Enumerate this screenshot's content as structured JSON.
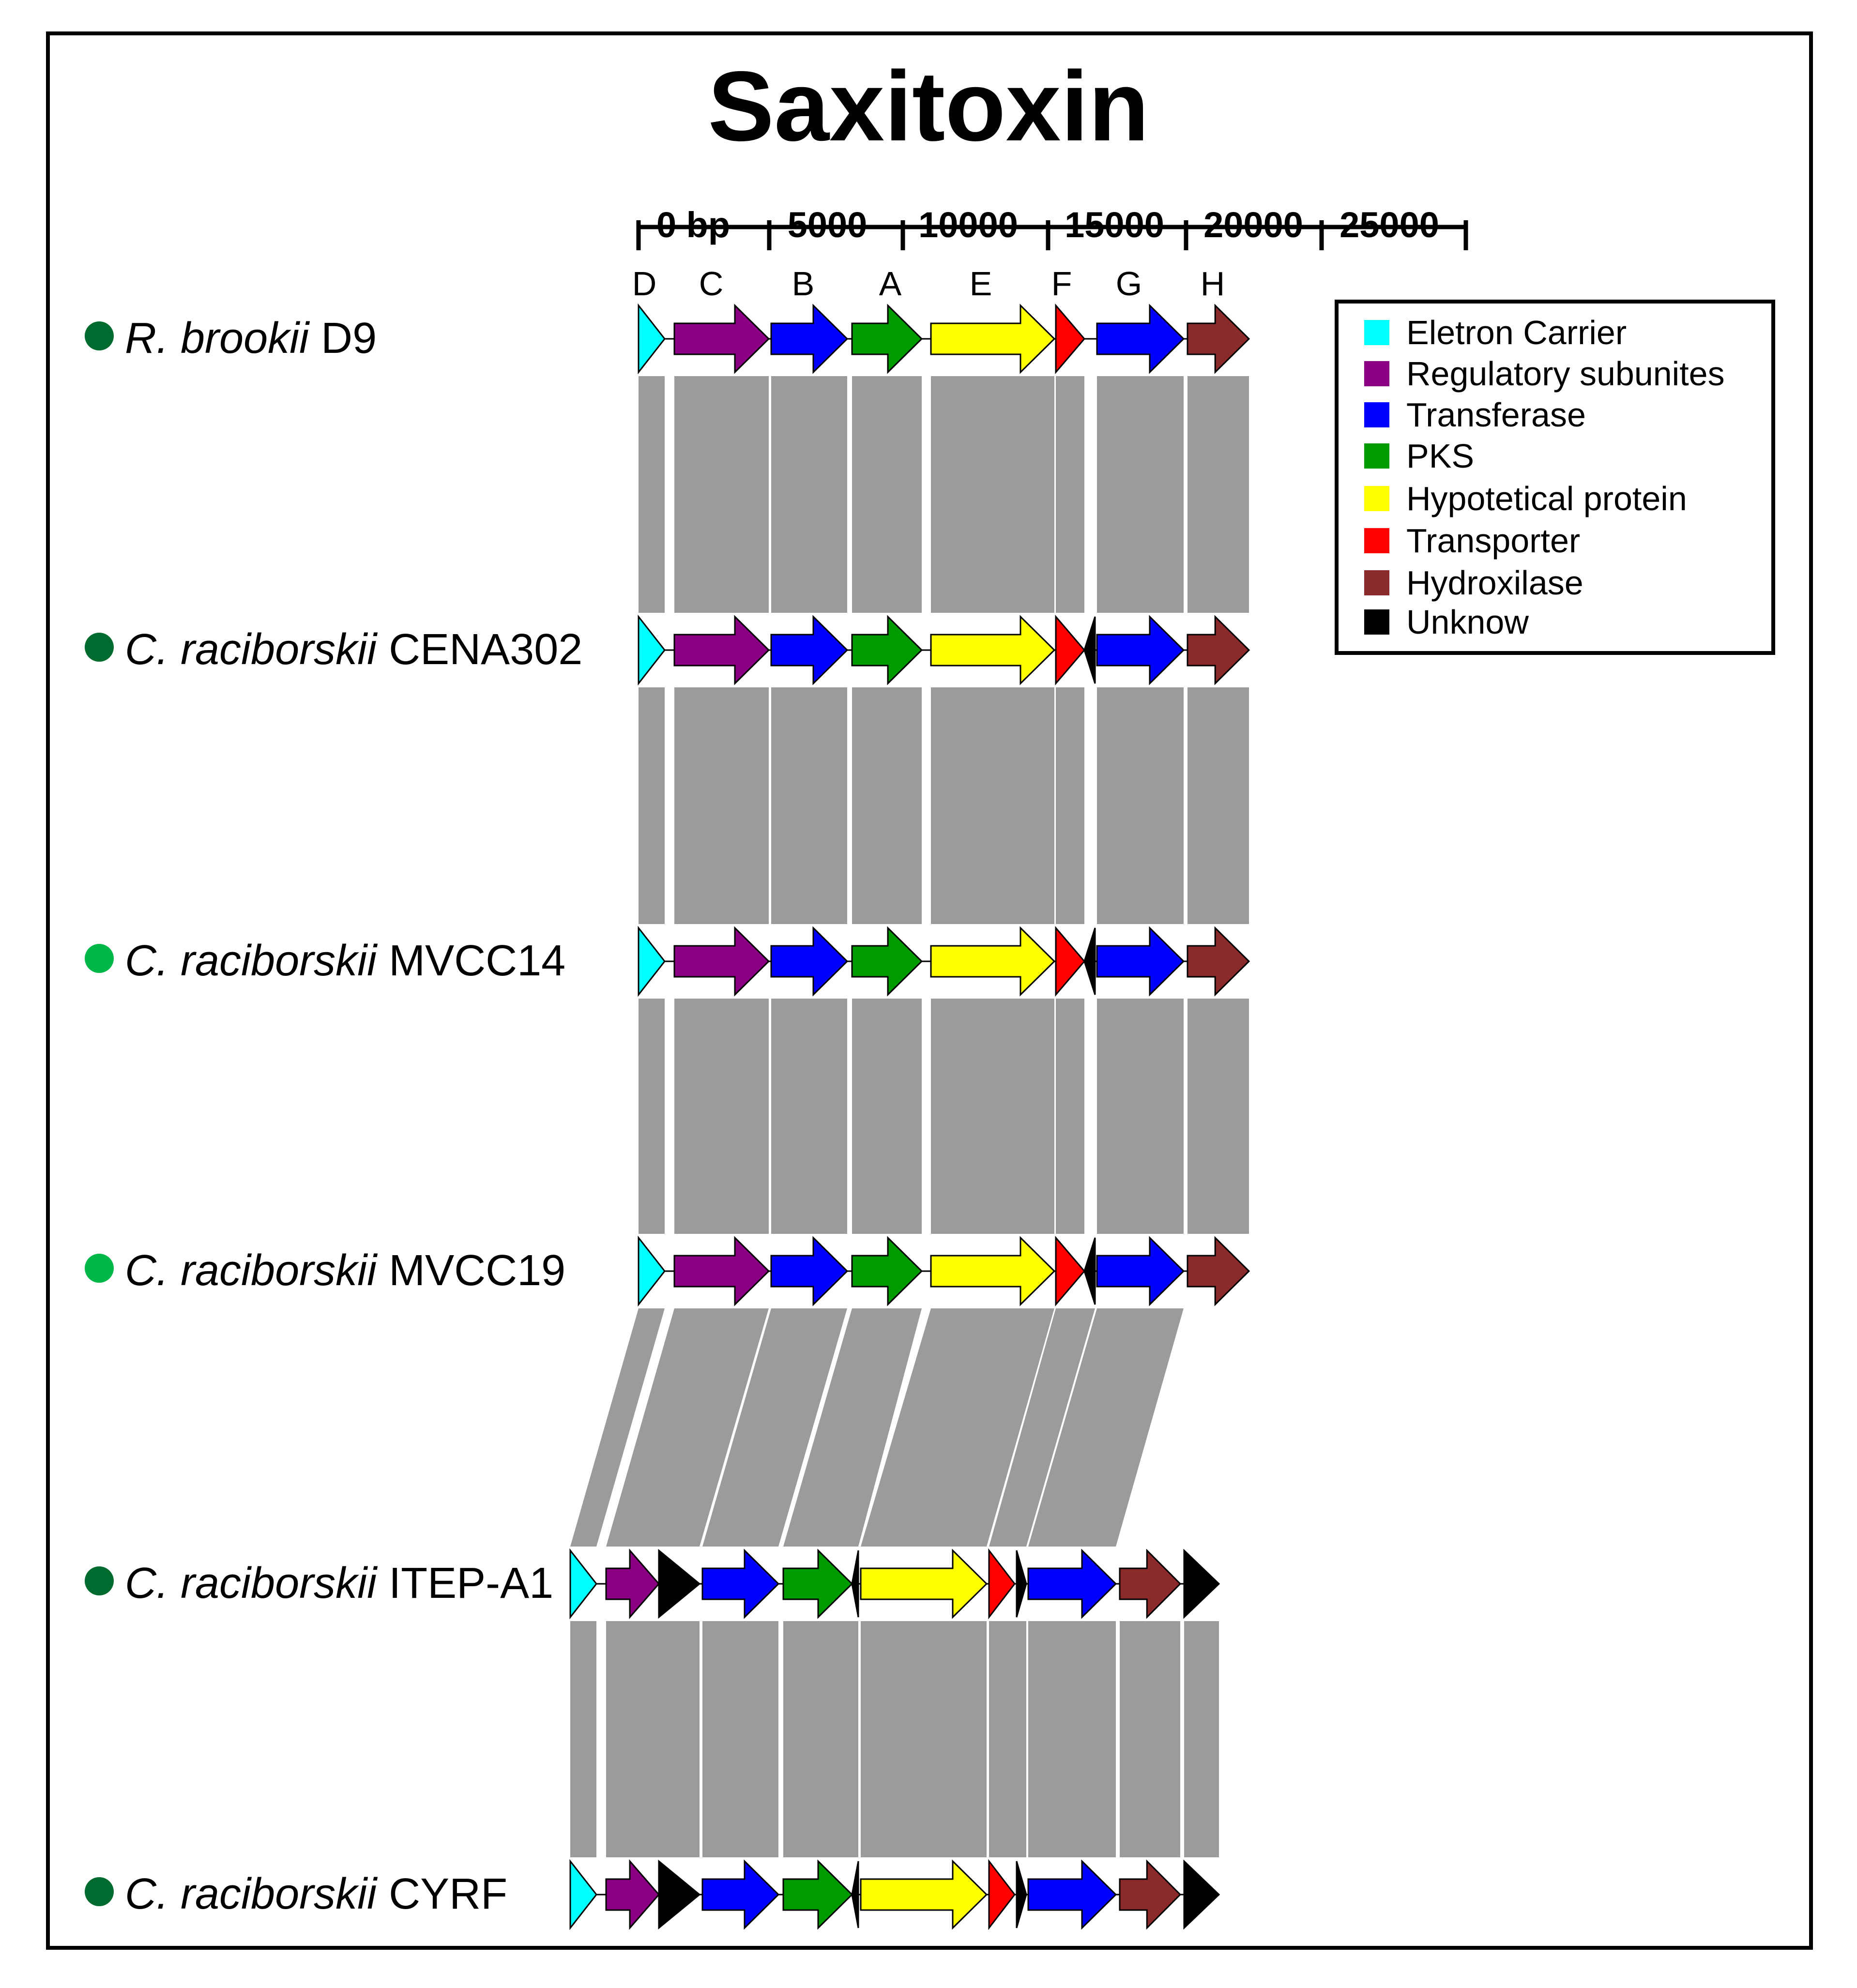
{
  "title": "Saxitoxin",
  "scale": {
    "ticks": [
      {
        "value": 0,
        "label": "0 bp"
      },
      {
        "value": 5000,
        "label": "5000"
      },
      {
        "value": 10000,
        "label": "10000"
      },
      {
        "value": 15000,
        "label": "15000"
      },
      {
        "value": 20000,
        "label": "20000"
      },
      {
        "value": 25000,
        "label": "25000"
      }
    ]
  },
  "gene_letters": [
    "D",
    "C",
    "B",
    "A",
    "E",
    "F",
    "G",
    "H"
  ],
  "categories": [
    {
      "key": "electron",
      "label": "Eletron Carrier",
      "color": "#00ffff"
    },
    {
      "key": "regulatory",
      "label": "Regulatory subunites",
      "color": "#8b0083"
    },
    {
      "key": "transferase",
      "label": "Transferase",
      "color": "#0000ff"
    },
    {
      "key": "pks",
      "label": "PKS",
      "color": "#009b00"
    },
    {
      "key": "hypothetical",
      "label": "Hypotetical protein",
      "color": "#ffff00"
    },
    {
      "key": "transporter",
      "label": "Transporter",
      "color": "#ff0000"
    },
    {
      "key": "hydroxilase",
      "label": "Hydroxilase",
      "color": "#8b2a2a"
    },
    {
      "key": "unknown",
      "label": "Unknow",
      "color": "#000000"
    }
  ],
  "strains": [
    {
      "genus": "R. brookii",
      "strain": "D9",
      "dot_color": "#006b2e"
    },
    {
      "genus": "C. raciborskii",
      "strain": "CENA302",
      "dot_color": "#006b2e"
    },
    {
      "genus": "C. raciborskii",
      "strain": "MVCC14",
      "dot_color": "#00b84a"
    },
    {
      "genus": "C. raciborskii",
      "strain": "MVCC19",
      "dot_color": "#00b84a"
    },
    {
      "genus": "C. raciborskii",
      "strain": "ITEP-A1",
      "dot_color": "#006b2e"
    },
    {
      "genus": "C. raciborskii",
      "strain": "CYRF",
      "dot_color": "#006b2e"
    }
  ],
  "link_color": "#9b9b9b"
}
